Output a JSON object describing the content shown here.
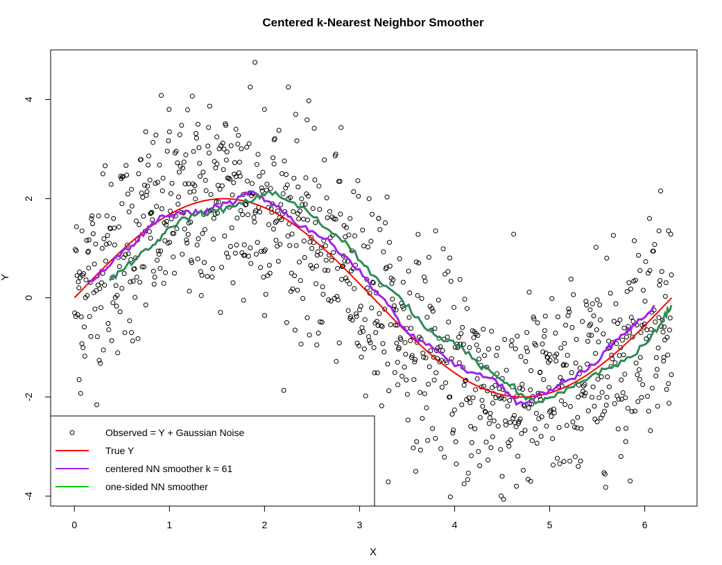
{
  "chart_data": {
    "type": "scatter",
    "title": "Centered k-Nearest Neighbor Smoother",
    "xlabel": "X",
    "ylabel": "Y",
    "xlim": [
      -0.25,
      6.55
    ],
    "ylim": [
      -4.2,
      5.0
    ],
    "x_ticks": [
      0,
      1,
      2,
      3,
      4,
      5,
      6
    ],
    "y_ticks": [
      -4,
      -2,
      0,
      2,
      4
    ],
    "legend_position": "bottom-left",
    "legend": [
      {
        "label": "Observed = Y + Gaussian Noise",
        "kind": "point",
        "color": "#000000"
      },
      {
        "label": "True Y",
        "kind": "line",
        "color": "#ff0000"
      },
      {
        "label": "centered NN smoother k = 61",
        "kind": "line",
        "color": "#a020f0"
      },
      {
        "label": "one-sided NN smoother",
        "kind": "line",
        "color": "#00cd00"
      }
    ],
    "series": [
      {
        "name": "Observed = Y + Gaussian Noise",
        "kind": "points",
        "color": "#000000",
        "note_count_approx": 1000,
        "sample_points": [
          [
            0.02,
            0.95
          ],
          [
            0.05,
            -1.65
          ],
          [
            0.08,
            1.35
          ],
          [
            0.15,
            0.6
          ],
          [
            0.3,
            2.5
          ],
          [
            0.5,
            1.9
          ],
          [
            0.6,
            -0.7
          ],
          [
            0.75,
            3.35
          ],
          [
            0.8,
            1.7
          ],
          [
            1.0,
            3.35
          ],
          [
            1.2,
            2.3
          ],
          [
            1.3,
            3.5
          ],
          [
            1.5,
            2.7
          ],
          [
            1.6,
            0.9
          ],
          [
            1.7,
            3.4
          ],
          [
            1.78,
            -0.05
          ],
          [
            1.85,
            4.25
          ],
          [
            1.9,
            4.75
          ],
          [
            2.0,
            3.8
          ],
          [
            2.1,
            2.7
          ],
          [
            2.25,
            4.25
          ],
          [
            2.35,
            1.7
          ],
          [
            2.45,
            -0.4
          ],
          [
            2.55,
            -0.95
          ],
          [
            2.75,
            2.9
          ],
          [
            2.9,
            1.6
          ],
          [
            3.1,
            2.0
          ],
          [
            3.2,
            1.6
          ],
          [
            3.4,
            -1.3
          ],
          [
            3.6,
            -2.9
          ],
          [
            3.8,
            1.35
          ],
          [
            3.95,
            -2.0
          ],
          [
            4.1,
            -3.75
          ],
          [
            4.25,
            -3.1
          ],
          [
            4.4,
            -2.8
          ],
          [
            4.5,
            -3.6
          ],
          [
            4.65,
            -3.8
          ],
          [
            4.8,
            -3.7
          ],
          [
            4.9,
            -1.5
          ],
          [
            5.0,
            -2.3
          ],
          [
            5.15,
            -3.3
          ],
          [
            5.3,
            -3.4
          ],
          [
            5.5,
            -2.5
          ],
          [
            5.6,
            0.8
          ],
          [
            5.75,
            -3.2
          ],
          [
            5.8,
            -2.9
          ],
          [
            5.95,
            0.55
          ],
          [
            6.05,
            1.6
          ],
          [
            6.15,
            1.35
          ],
          [
            6.2,
            -1.2
          ],
          [
            6.25,
            1.35
          ],
          [
            6.28,
            -1.55
          ]
        ]
      },
      {
        "name": "True Y",
        "kind": "line",
        "color": "#ff0000",
        "formula": "2*sin(x)",
        "x_range": [
          0,
          6.283
        ]
      },
      {
        "name": "centered NN smoother k = 61",
        "kind": "line",
        "color": "#a020f0",
        "points": [
          [
            0.15,
            0.3
          ],
          [
            0.3,
            0.55
          ],
          [
            0.45,
            0.85
          ],
          [
            0.6,
            1.05
          ],
          [
            0.75,
            1.35
          ],
          [
            0.9,
            1.65
          ],
          [
            1.05,
            1.65
          ],
          [
            1.2,
            1.75
          ],
          [
            1.35,
            1.7
          ],
          [
            1.5,
            1.85
          ],
          [
            1.7,
            1.95
          ],
          [
            1.85,
            2.15
          ],
          [
            2.0,
            1.95
          ],
          [
            2.15,
            1.85
          ],
          [
            2.3,
            1.55
          ],
          [
            2.5,
            1.35
          ],
          [
            2.7,
            1.1
          ],
          [
            2.9,
            0.75
          ],
          [
            3.1,
            0.3
          ],
          [
            3.3,
            -0.15
          ],
          [
            3.5,
            -0.7
          ],
          [
            3.7,
            -0.95
          ],
          [
            3.9,
            -1.2
          ],
          [
            4.1,
            -1.45
          ],
          [
            4.3,
            -1.6
          ],
          [
            4.5,
            -1.75
          ],
          [
            4.65,
            -2.15
          ],
          [
            4.8,
            -2.05
          ],
          [
            5.0,
            -1.85
          ],
          [
            5.2,
            -1.65
          ],
          [
            5.4,
            -1.45
          ],
          [
            5.6,
            -1.05
          ],
          [
            5.75,
            -0.75
          ],
          [
            5.9,
            -0.55
          ],
          [
            6.1,
            -0.15
          ]
        ]
      },
      {
        "name": "one-sided NN smoother",
        "kind": "line",
        "color": "#2e8b57",
        "points": [
          [
            0.37,
            0.35
          ],
          [
            0.5,
            0.55
          ],
          [
            0.65,
            0.8
          ],
          [
            0.8,
            1.0
          ],
          [
            0.95,
            1.3
          ],
          [
            1.1,
            1.55
          ],
          [
            1.3,
            1.7
          ],
          [
            1.5,
            1.75
          ],
          [
            1.7,
            1.85
          ],
          [
            1.9,
            2.0
          ],
          [
            2.05,
            2.15
          ],
          [
            2.25,
            1.95
          ],
          [
            2.45,
            1.75
          ],
          [
            2.65,
            1.4
          ],
          [
            2.85,
            1.15
          ],
          [
            3.05,
            0.65
          ],
          [
            3.25,
            0.25
          ],
          [
            3.45,
            -0.05
          ],
          [
            3.65,
            -0.5
          ],
          [
            3.85,
            -0.8
          ],
          [
            4.05,
            -0.95
          ],
          [
            4.25,
            -1.35
          ],
          [
            4.45,
            -1.6
          ],
          [
            4.6,
            -1.75
          ],
          [
            4.75,
            -2.05
          ],
          [
            4.9,
            -2.1
          ],
          [
            5.05,
            -2.0
          ],
          [
            5.25,
            -1.8
          ],
          [
            5.45,
            -1.55
          ],
          [
            5.65,
            -1.4
          ],
          [
            5.85,
            -1.2
          ],
          [
            6.05,
            -0.85
          ],
          [
            6.2,
            -0.4
          ],
          [
            6.28,
            -0.15
          ]
        ]
      }
    ]
  }
}
